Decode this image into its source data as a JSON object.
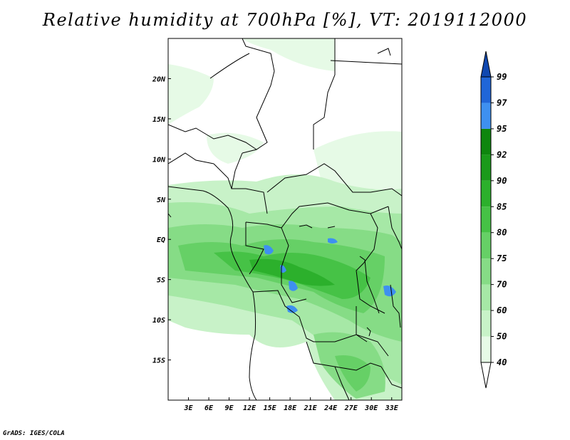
{
  "title": "Relative humidity at 700hPa [%], VT: 2019112000",
  "credit": "GrADS: IGES/COLA",
  "map": {
    "lon_range": [
      0,
      34.5
    ],
    "lat_range": [
      -20,
      25
    ],
    "lon_ticks": [
      "3E",
      "6E",
      "9E",
      "12E",
      "15E",
      "18E",
      "21E",
      "24E",
      "27E",
      "30E",
      "33E"
    ],
    "lon_tick_values": [
      3,
      6,
      9,
      12,
      15,
      18,
      21,
      24,
      27,
      30,
      33
    ],
    "lat_ticks": [
      "20N",
      "15N",
      "10N",
      "5N",
      "EQ",
      "5S",
      "10S",
      "15S"
    ],
    "lat_tick_values": [
      20,
      15,
      10,
      5,
      0,
      -5,
      -10,
      -15
    ]
  },
  "colorbar": {
    "labels": [
      "40",
      "50",
      "60",
      "70",
      "75",
      "80",
      "85",
      "90",
      "92",
      "95",
      "97",
      "99"
    ],
    "colors": [
      "#ffffff",
      "#e6fae6",
      "#c8f2c8",
      "#a6e8a6",
      "#86dc86",
      "#66d066",
      "#46c246",
      "#2cb02c",
      "#1a9a1a",
      "#0e860e",
      "#3e90f0",
      "#2066d8",
      "#1048b0"
    ]
  }
}
